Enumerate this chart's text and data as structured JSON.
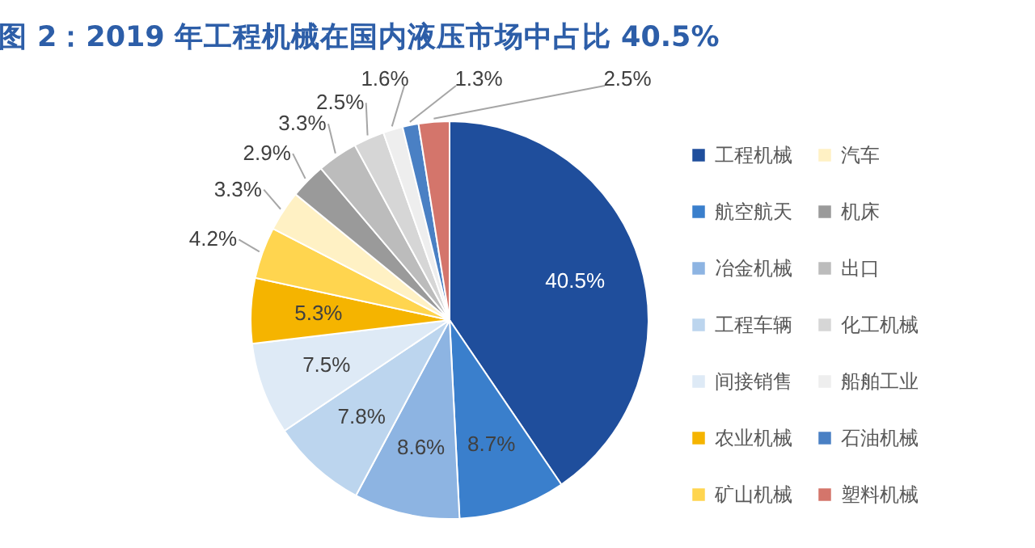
{
  "chart_data": {
    "type": "pie",
    "title": "图 2：2019 年工程机械在国内液压市场中占比 40.5%",
    "categories": [
      "工程机械",
      "航空航天",
      "冶金机械",
      "工程车辆",
      "间接销售",
      "农业机械",
      "矿山机械",
      "汽车",
      "机床",
      "出口",
      "化工机械",
      "船舶工业",
      "石油机械",
      "塑料机械"
    ],
    "values": [
      40.5,
      8.7,
      8.6,
      7.8,
      7.5,
      5.3,
      4.2,
      3.3,
      2.9,
      3.3,
      2.5,
      1.6,
      1.3,
      2.5
    ],
    "colors": [
      "#1f4e9c",
      "#3a7fcc",
      "#8db4e2",
      "#bcd5ee",
      "#deeaf6",
      "#f5b400",
      "#ffd54f",
      "#fff1c4",
      "#9a9a9a",
      "#bcbcbc",
      "#d6d6d6",
      "#eeeeee",
      "#4a80c4",
      "#d4756b"
    ],
    "value_labels": [
      "40.5%",
      "8.7%",
      "8.6%",
      "7.8%",
      "7.5%",
      "5.3%",
      "4.2%",
      "3.3%",
      "2.9%",
      "3.3%",
      "2.5%",
      "1.6%",
      "1.3%",
      "2.5%"
    ],
    "legend": "right"
  }
}
